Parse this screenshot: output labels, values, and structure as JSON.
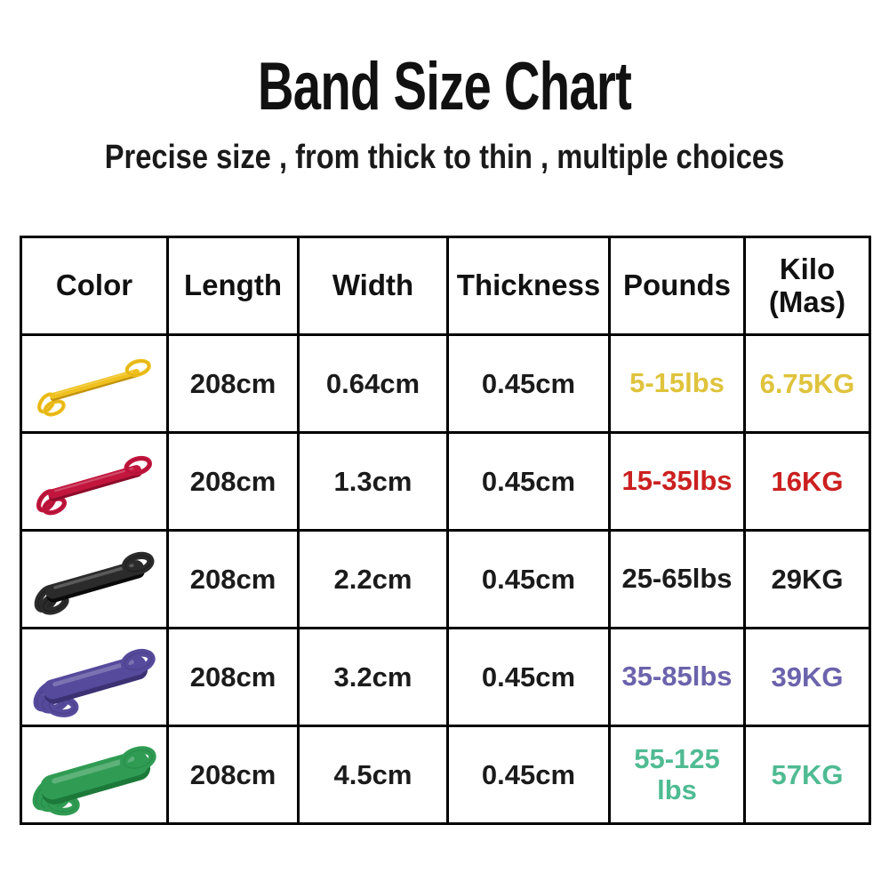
{
  "page": {
    "title": "Band Size Chart",
    "subtitle": "Precise size , from thick to thin , multiple choices"
  },
  "table": {
    "headers": [
      "Color",
      "Length",
      "Width",
      "Thickness",
      "Pounds",
      "Kilo\n(Mas)"
    ],
    "header_keys": [
      "color",
      "length",
      "width",
      "thickness",
      "pounds",
      "kilo"
    ],
    "rows": [
      {
        "color_name": "yellow",
        "length": "208cm",
        "width": "0.64cm",
        "thickness": "0.45cm",
        "pounds": "5-15lbs",
        "kilo": "6.75KG",
        "accent": "#dfc33c",
        "band": {
          "fill": "#f0c11e",
          "shade": "#c1920b",
          "strap": 7,
          "petals": 2
        }
      },
      {
        "color_name": "red",
        "length": "208cm",
        "width": "1.3cm",
        "thickness": "0.45cm",
        "pounds": "15-35lbs",
        "kilo": "16KG",
        "accent": "#cb2020",
        "band": {
          "fill": "#c2163e",
          "shade": "#8c0c2a",
          "strap": 11,
          "petals": 2
        }
      },
      {
        "color_name": "black",
        "length": "208cm",
        "width": "2.2cm",
        "thickness": "0.45cm",
        "pounds": "25-65lbs",
        "kilo": "29KG",
        "accent": "#1b1b1b",
        "band": {
          "fill": "#2b2b2b",
          "shade": "#0a0a0a",
          "strap": 17,
          "petals": 2
        }
      },
      {
        "color_name": "purple",
        "length": "208cm",
        "width": "3.2cm",
        "thickness": "0.45cm",
        "pounds": "35-85lbs",
        "kilo": "39KG",
        "accent": "#6b63ac",
        "band": {
          "fill": "#564a9c",
          "shade": "#3c3173",
          "strap": 23,
          "petals": 3
        }
      },
      {
        "color_name": "green",
        "length": "208cm",
        "width": "4.5cm",
        "thickness": "0.45cm",
        "pounds": "55-125 lbs",
        "kilo": "57KG",
        "accent": "#4fbb92",
        "band": {
          "fill": "#2f9b53",
          "shade": "#1c7939",
          "strap": 29,
          "petals": 3
        }
      }
    ]
  },
  "chart_data": {
    "type": "table",
    "title": "Band Size Chart",
    "subtitle": "Precise size , from thick to thin , multiple choices",
    "columns": [
      "Color",
      "Length",
      "Width",
      "Thickness",
      "Pounds",
      "Kilo (Mas)"
    ],
    "rows": [
      [
        "yellow band",
        "208cm",
        "0.64cm",
        "0.45cm",
        "5-15lbs",
        "6.75KG"
      ],
      [
        "red band",
        "208cm",
        "1.3cm",
        "0.45cm",
        "15-35lbs",
        "16KG"
      ],
      [
        "black band",
        "208cm",
        "2.2cm",
        "0.45cm",
        "25-65lbs",
        "29KG"
      ],
      [
        "purple band",
        "208cm",
        "3.2cm",
        "0.45cm",
        "35-85lbs",
        "39KG"
      ],
      [
        "green band",
        "208cm",
        "4.5cm",
        "0.45cm",
        "55-125 lbs",
        "57KG"
      ]
    ]
  }
}
